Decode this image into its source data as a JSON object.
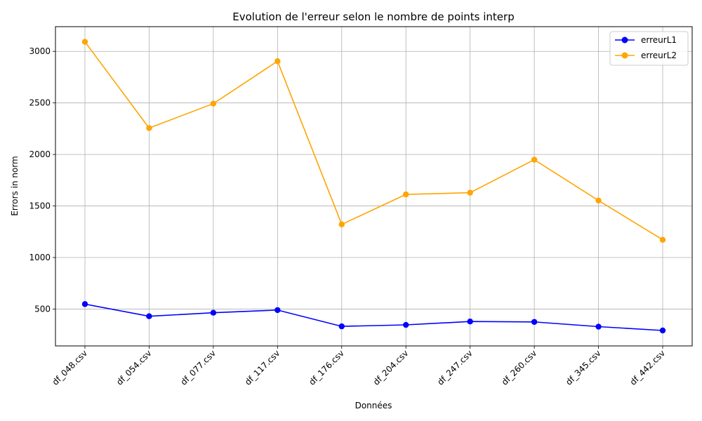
{
  "chart_data": {
    "type": "line",
    "title": "Evolution de l'erreur selon le nombre de points interp",
    "xlabel": "Données",
    "ylabel": "Errors in norm",
    "categories": [
      "df_048.csv",
      "df_054.csv",
      "df_077.csv",
      "df_117.csv",
      "df_176.csv",
      "df_204.csv",
      "df_247.csv",
      "df_260.csv",
      "df_345.csv",
      "df_442.csv"
    ],
    "series": [
      {
        "name": "erreurL1",
        "color": "#0000ff",
        "marker": "circle",
        "values": [
          548,
          430,
          464,
          490,
          332,
          346,
          379,
          375,
          329,
          292
        ]
      },
      {
        "name": "erreurL2",
        "color": "#ffa500",
        "marker": "circle",
        "values": [
          3093,
          2256,
          2493,
          2905,
          1321,
          1612,
          1629,
          1949,
          1553,
          1172
        ]
      }
    ],
    "ylim": [
      142,
      3240
    ],
    "yticks": [
      500,
      1000,
      1500,
      2000,
      2500,
      3000
    ],
    "grid": true,
    "legend_position": "top-right",
    "x_tick_rotation": 45
  }
}
